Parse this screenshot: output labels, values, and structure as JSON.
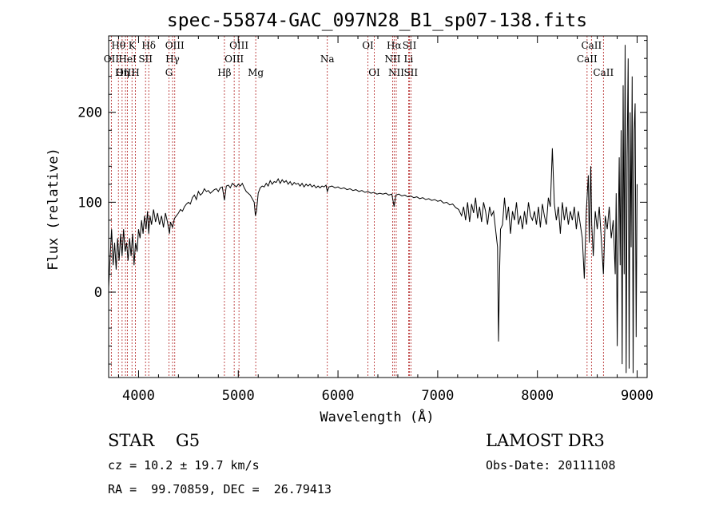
{
  "chart_data": {
    "type": "line",
    "title": "spec-55874-GAC_097N28_B1_sp07-138.fits",
    "xlabel": "Wavelength (Å)",
    "ylabel": "Flux (relative)",
    "xlim": [
      3700,
      9100
    ],
    "ylim": [
      -95,
      285
    ],
    "xticks": [
      4000,
      5000,
      6000,
      7000,
      8000,
      9000
    ],
    "yticks": [
      0,
      100,
      200
    ],
    "grid": false,
    "series": [
      {
        "values": [
          [
            3700,
            5
          ],
          [
            3715,
            40
          ],
          [
            3730,
            70
          ],
          [
            3745,
            30
          ],
          [
            3760,
            55
          ],
          [
            3775,
            25
          ],
          [
            3790,
            60
          ],
          [
            3805,
            35
          ],
          [
            3820,
            65
          ],
          [
            3835,
            40
          ],
          [
            3850,
            70
          ],
          [
            3865,
            45
          ],
          [
            3880,
            55
          ],
          [
            3895,
            35
          ],
          [
            3910,
            60
          ],
          [
            3925,
            40
          ],
          [
            3940,
            65
          ],
          [
            3955,
            30
          ],
          [
            3970,
            55
          ],
          [
            3985,
            45
          ],
          [
            4000,
            70
          ],
          [
            4015,
            60
          ],
          [
            4030,
            80
          ],
          [
            4045,
            65
          ],
          [
            4060,
            85
          ],
          [
            4075,
            70
          ],
          [
            4090,
            90
          ],
          [
            4101,
            65
          ],
          [
            4115,
            85
          ],
          [
            4130,
            75
          ],
          [
            4150,
            92
          ],
          [
            4170,
            78
          ],
          [
            4190,
            88
          ],
          [
            4210,
            75
          ],
          [
            4230,
            85
          ],
          [
            4250,
            72
          ],
          [
            4270,
            88
          ],
          [
            4290,
            78
          ],
          [
            4310,
            65
          ],
          [
            4320,
            78
          ],
          [
            4340,
            72
          ],
          [
            4360,
            82
          ],
          [
            4380,
            85
          ],
          [
            4400,
            88
          ],
          [
            4420,
            92
          ],
          [
            4440,
            90
          ],
          [
            4460,
            95
          ],
          [
            4480,
            98
          ],
          [
            4500,
            100
          ],
          [
            4520,
            98
          ],
          [
            4540,
            105
          ],
          [
            4560,
            108
          ],
          [
            4580,
            103
          ],
          [
            4600,
            112
          ],
          [
            4620,
            108
          ],
          [
            4640,
            110
          ],
          [
            4660,
            115
          ],
          [
            4680,
            112
          ],
          [
            4700,
            113
          ],
          [
            4720,
            110
          ],
          [
            4740,
            112
          ],
          [
            4760,
            114
          ],
          [
            4780,
            115
          ],
          [
            4800,
            112
          ],
          [
            4820,
            116
          ],
          [
            4840,
            117
          ],
          [
            4861,
            102
          ],
          [
            4880,
            118
          ],
          [
            4900,
            119
          ],
          [
            4920,
            116
          ],
          [
            4940,
            121
          ],
          [
            4960,
            119
          ],
          [
            4980,
            117
          ],
          [
            5000,
            120
          ],
          [
            5020,
            118
          ],
          [
            5040,
            121
          ],
          [
            5060,
            116
          ],
          [
            5080,
            112
          ],
          [
            5100,
            110
          ],
          [
            5120,
            108
          ],
          [
            5140,
            104
          ],
          [
            5160,
            100
          ],
          [
            5172,
            85
          ],
          [
            5183,
            90
          ],
          [
            5200,
            110
          ],
          [
            5220,
            116
          ],
          [
            5240,
            118
          ],
          [
            5260,
            117
          ],
          [
            5280,
            121
          ],
          [
            5300,
            118
          ],
          [
            5320,
            124
          ],
          [
            5340,
            120
          ],
          [
            5360,
            123
          ],
          [
            5380,
            122
          ],
          [
            5400,
            126
          ],
          [
            5420,
            121
          ],
          [
            5440,
            125
          ],
          [
            5460,
            122
          ],
          [
            5480,
            124
          ],
          [
            5500,
            120
          ],
          [
            5520,
            123
          ],
          [
            5540,
            119
          ],
          [
            5560,
            122
          ],
          [
            5580,
            120
          ],
          [
            5600,
            121
          ],
          [
            5620,
            118
          ],
          [
            5640,
            121
          ],
          [
            5660,
            117
          ],
          [
            5680,
            120
          ],
          [
            5700,
            118
          ],
          [
            5720,
            120
          ],
          [
            5740,
            117
          ],
          [
            5760,
            119
          ],
          [
            5780,
            116
          ],
          [
            5800,
            118
          ],
          [
            5820,
            116
          ],
          [
            5840,
            118
          ],
          [
            5860,
            117
          ],
          [
            5880,
            119
          ],
          [
            5893,
            112
          ],
          [
            5910,
            117
          ],
          [
            5940,
            118
          ],
          [
            5970,
            116
          ],
          [
            6000,
            117
          ],
          [
            6030,
            115
          ],
          [
            6060,
            116
          ],
          [
            6090,
            114
          ],
          [
            6120,
            115
          ],
          [
            6150,
            113
          ],
          [
            6180,
            114
          ],
          [
            6210,
            112
          ],
          [
            6240,
            113
          ],
          [
            6270,
            111
          ],
          [
            6300,
            112
          ],
          [
            6330,
            110
          ],
          [
            6360,
            111
          ],
          [
            6390,
            109
          ],
          [
            6420,
            110
          ],
          [
            6450,
            109
          ],
          [
            6480,
            110
          ],
          [
            6510,
            108
          ],
          [
            6540,
            109
          ],
          [
            6563,
            95
          ],
          [
            6580,
            108
          ],
          [
            6610,
            109
          ],
          [
            6640,
            107
          ],
          [
            6670,
            108
          ],
          [
            6700,
            106
          ],
          [
            6730,
            107
          ],
          [
            6760,
            105
          ],
          [
            6790,
            106
          ],
          [
            6820,
            104
          ],
          [
            6850,
            105
          ],
          [
            6880,
            103
          ],
          [
            6910,
            104
          ],
          [
            6940,
            102
          ],
          [
            6970,
            103
          ],
          [
            7000,
            101
          ],
          [
            7030,
            102
          ],
          [
            7060,
            99
          ],
          [
            7090,
            100
          ],
          [
            7120,
            97
          ],
          [
            7150,
            98
          ],
          [
            7180,
            94
          ],
          [
            7210,
            92
          ],
          [
            7240,
            85
          ],
          [
            7260,
            95
          ],
          [
            7280,
            80
          ],
          [
            7300,
            100
          ],
          [
            7320,
            78
          ],
          [
            7340,
            98
          ],
          [
            7360,
            88
          ],
          [
            7380,
            105
          ],
          [
            7400,
            82
          ],
          [
            7420,
            95
          ],
          [
            7440,
            78
          ],
          [
            7460,
            100
          ],
          [
            7480,
            90
          ],
          [
            7500,
            75
          ],
          [
            7520,
            95
          ],
          [
            7540,
            85
          ],
          [
            7560,
            90
          ],
          [
            7580,
            70
          ],
          [
            7600,
            50
          ],
          [
            7610,
            -55
          ],
          [
            7620,
            20
          ],
          [
            7630,
            70
          ],
          [
            7650,
            75
          ],
          [
            7670,
            105
          ],
          [
            7690,
            80
          ],
          [
            7710,
            95
          ],
          [
            7730,
            65
          ],
          [
            7750,
            90
          ],
          [
            7770,
            80
          ],
          [
            7790,
            100
          ],
          [
            7810,
            75
          ],
          [
            7830,
            85
          ],
          [
            7850,
            70
          ],
          [
            7870,
            90
          ],
          [
            7890,
            75
          ],
          [
            7910,
            100
          ],
          [
            7930,
            85
          ],
          [
            7950,
            80
          ],
          [
            7970,
            90
          ],
          [
            7990,
            75
          ],
          [
            8010,
            95
          ],
          [
            8030,
            72
          ],
          [
            8050,
            98
          ],
          [
            8070,
            85
          ],
          [
            8090,
            75
          ],
          [
            8110,
            105
          ],
          [
            8130,
            95
          ],
          [
            8150,
            160
          ],
          [
            8170,
            98
          ],
          [
            8190,
            80
          ],
          [
            8210,
            95
          ],
          [
            8230,
            65
          ],
          [
            8250,
            100
          ],
          [
            8270,
            80
          ],
          [
            8290,
            95
          ],
          [
            8310,
            75
          ],
          [
            8330,
            90
          ],
          [
            8350,
            80
          ],
          [
            8370,
            95
          ],
          [
            8390,
            70
          ],
          [
            8410,
            90
          ],
          [
            8430,
            75
          ],
          [
            8450,
            60
          ],
          [
            8470,
            15
          ],
          [
            8490,
            90
          ],
          [
            8510,
            130
          ],
          [
            8520,
            55
          ],
          [
            8535,
            140
          ],
          [
            8545,
            75
          ],
          [
            8560,
            40
          ],
          [
            8580,
            90
          ],
          [
            8600,
            70
          ],
          [
            8620,
            95
          ],
          [
            8640,
            60
          ],
          [
            8662,
            20
          ],
          [
            8680,
            85
          ],
          [
            8700,
            70
          ],
          [
            8720,
            95
          ],
          [
            8740,
            60
          ],
          [
            8760,
            80
          ],
          [
            8780,
            20
          ],
          [
            8790,
            110
          ],
          [
            8800,
            -60
          ],
          [
            8810,
            60
          ],
          [
            8820,
            150
          ],
          [
            8830,
            30
          ],
          [
            8840,
            180
          ],
          [
            8850,
            -80
          ],
          [
            8860,
            230
          ],
          [
            8870,
            20
          ],
          [
            8880,
            275
          ],
          [
            8890,
            -90
          ],
          [
            8900,
            150
          ],
          [
            8910,
            260
          ],
          [
            8920,
            -85
          ],
          [
            8930,
            200
          ],
          [
            8940,
            50
          ],
          [
            8950,
            240
          ],
          [
            8960,
            -90
          ],
          [
            8970,
            180
          ],
          [
            8980,
            210
          ],
          [
            8990,
            -50
          ],
          [
            9000,
            120
          ]
        ]
      }
    ],
    "spectral_lines": [
      {
        "label": "Hθ",
        "x": 3798,
        "row": 0
      },
      {
        "label": "OII",
        "x": 3727,
        "row": 1
      },
      {
        "label": "OIII",
        "x": 3869,
        "row": 2
      },
      {
        "label": "K",
        "x": 3934,
        "row": 0
      },
      {
        "label": "HeI",
        "x": 3889,
        "row": 1
      },
      {
        "label": "Hη",
        "x": 3835,
        "row": 2
      },
      {
        "label": "SII",
        "x": 4070,
        "row": 1
      },
      {
        "label": "H",
        "x": 3968,
        "row": 2
      },
      {
        "label": "Hδ",
        "x": 4102,
        "row": 0
      },
      {
        "label": "OIII",
        "x": 4363,
        "row": 0
      },
      {
        "label": "Hγ",
        "x": 4341,
        "row": 1
      },
      {
        "label": "G",
        "x": 4305,
        "row": 2
      },
      {
        "label": "OIII",
        "x": 5007,
        "row": 0
      },
      {
        "label": "OIII",
        "x": 4959,
        "row": 1
      },
      {
        "label": "Hβ",
        "x": 4861,
        "row": 2
      },
      {
        "label": "Mg",
        "x": 5175,
        "row": 2
      },
      {
        "label": "Na",
        "x": 5893,
        "row": 1
      },
      {
        "label": "OI",
        "x": 6300,
        "row": 0
      },
      {
        "label": "OI",
        "x": 6364,
        "row": 2
      },
      {
        "label": "Hα",
        "x": 6563,
        "row": 0
      },
      {
        "label": "NII",
        "x": 6548,
        "row": 1
      },
      {
        "label": "NII",
        "x": 6584,
        "row": 2
      },
      {
        "label": "SII",
        "x": 6717,
        "row": 0
      },
      {
        "label": "Li",
        "x": 6708,
        "row": 1
      },
      {
        "label": "SII",
        "x": 6731,
        "row": 2
      },
      {
        "label": "CaII",
        "x": 8542,
        "row": 0
      },
      {
        "label": "CaII",
        "x": 8498,
        "row": 1
      },
      {
        "label": "CaII",
        "x": 8662,
        "row": 2
      }
    ]
  },
  "info": {
    "class_text": "STAR    G5",
    "survey_text": "LAMOST DR3",
    "cz_text": "cz = 10.2 ± 19.7 km/s",
    "obs_date_text": "Obs-Date: 20111108",
    "coords_text": "RA =  99.70859, DEC =  26.79413"
  }
}
